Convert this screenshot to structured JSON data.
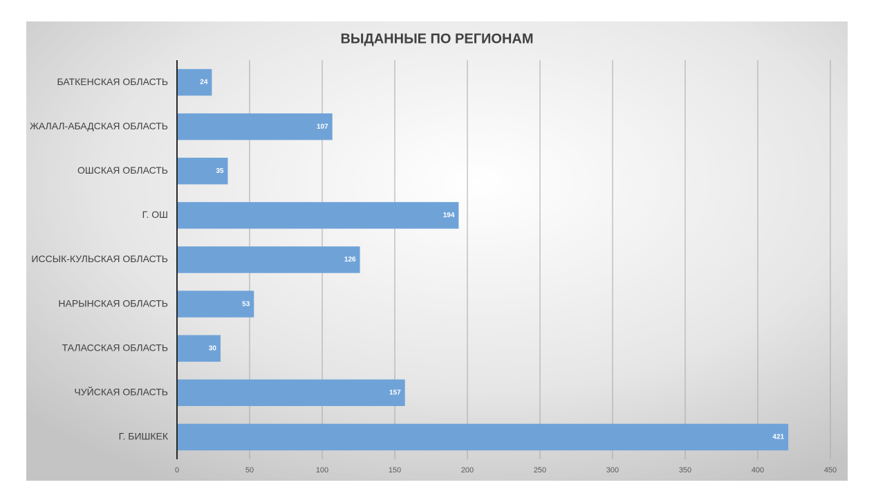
{
  "chart_data": {
    "type": "hbar",
    "title": "ВЫДАННЫЕ ПО РЕГИОНАМ",
    "categories": [
      "БАТКЕНСКАЯ ОБЛАСТЬ",
      "ЖАЛАЛ-АБАДСКАЯ ОБЛАСТЬ",
      "ОШСКАЯ ОБЛАСТЬ",
      "Г. ОШ",
      "ИССЫК-КУЛЬСКАЯ ОБЛАСТЬ",
      "НАРЫНСКАЯ ОБЛАСТЬ",
      "ТАЛАССКАЯ ОБЛАСТЬ",
      "ЧУЙСКАЯ ОБЛАСТЬ",
      "Г. БИШКЕК"
    ],
    "values": [
      24,
      107,
      35,
      194,
      126,
      53,
      30,
      157,
      421
    ],
    "color": "#6fa3d8",
    "xlim": [
      0,
      450
    ],
    "xticks": [
      0,
      50,
      100,
      150,
      200,
      250,
      300,
      350,
      400,
      450
    ],
    "grid": true
  }
}
